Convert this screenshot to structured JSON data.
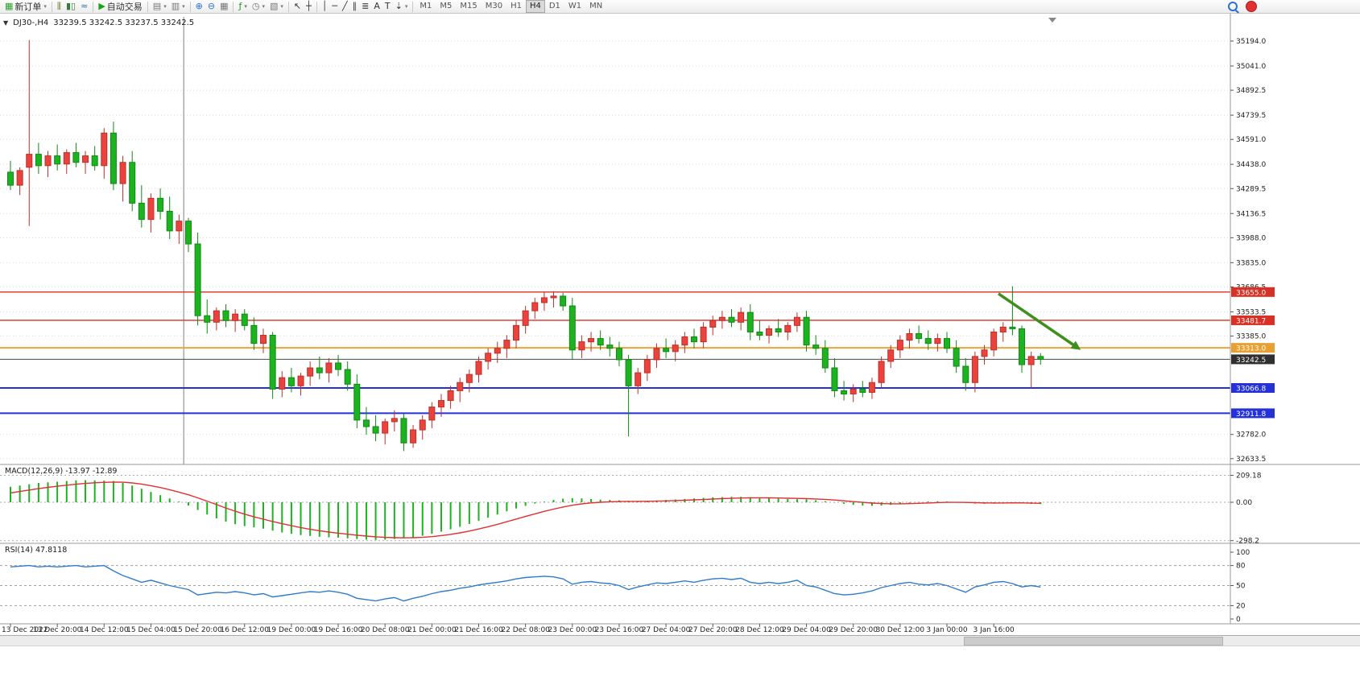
{
  "header": {
    "dropdown_caret": "▼",
    "symbol": "DJ30-,H4",
    "ohlc": "33239.5 33242.5 33237.5 33242.5"
  },
  "toolbar": {
    "items": [
      {
        "type": "button",
        "name": "new-order-button",
        "glyph": "▦",
        "glyph_color": "#2ca02c",
        "label": "新订单",
        "caret": true
      },
      {
        "type": "sep"
      },
      {
        "type": "icon",
        "name": "bar-chart-icon",
        "glyph": "⫼",
        "glyph_color": "#6a7a2a"
      },
      {
        "type": "icon",
        "name": "candlestick-chart-icon",
        "glyph": "▮▯",
        "glyph_color": "#3a7d3a"
      },
      {
        "type": "icon",
        "name": "line-chart-icon",
        "glyph": "≈",
        "glyph_color": "#3a6d9a"
      },
      {
        "type": "sep"
      },
      {
        "type": "button",
        "name": "autotrading-button",
        "glyph": "▶",
        "glyph_color": "#19a319",
        "label": "自动交易"
      },
      {
        "type": "sep"
      },
      {
        "type": "icon",
        "name": "new-chart-icon",
        "glyph": "▤",
        "glyph_color": "#777777",
        "caret": true
      },
      {
        "type": "icon",
        "name": "profiles-icon",
        "glyph": "▥",
        "glyph_color": "#777777",
        "caret": true
      },
      {
        "type": "sep"
      },
      {
        "type": "icon",
        "name": "zoom-in-icon",
        "glyph": "⊕",
        "glyph_color": "#2a6fd4"
      },
      {
        "type": "icon",
        "name": "zoom-out-icon",
        "glyph": "⊖",
        "glyph_color": "#2a6fd4"
      },
      {
        "type": "icon",
        "name": "tile-windows-icon",
        "glyph": "▦",
        "glyph_color": "#777777"
      },
      {
        "type": "sep"
      },
      {
        "type": "icon",
        "name": "indicators-icon",
        "glyph": "ƒ",
        "glyph_color": "#1f9e1f",
        "caret": true
      },
      {
        "type": "icon",
        "name": "periods-icon",
        "glyph": "◷",
        "glyph_color": "#777777",
        "caret": true
      },
      {
        "type": "icon",
        "name": "templates-icon",
        "glyph": "▧",
        "glyph_color": "#777777",
        "caret": true
      },
      {
        "type": "sep"
      },
      {
        "type": "icon",
        "name": "cursor-icon",
        "glyph": "↖",
        "glyph_color": "#333333"
      },
      {
        "type": "icon",
        "name": "crosshair-icon",
        "glyph": "┼",
        "glyph_color": "#333333"
      },
      {
        "type": "sep"
      },
      {
        "type": "icon",
        "name": "vertical-line-icon",
        "glyph": "│",
        "glyph_color": "#333333"
      },
      {
        "type": "icon",
        "name": "horizontal-line-icon",
        "glyph": "─",
        "glyph_color": "#333333"
      },
      {
        "type": "icon",
        "name": "trendline-icon",
        "glyph": "╱",
        "glyph_color": "#333333"
      },
      {
        "type": "icon",
        "name": "channel-icon",
        "glyph": "∥",
        "glyph_color": "#333333"
      },
      {
        "type": "icon",
        "name": "fibonacci-icon",
        "glyph": "≣",
        "glyph_color": "#333333"
      },
      {
        "type": "icon",
        "name": "text-icon",
        "glyph": "A",
        "glyph_color": "#333333"
      },
      {
        "type": "icon",
        "name": "label-icon",
        "glyph": "T",
        "glyph_color": "#333333"
      },
      {
        "type": "icon",
        "name": "arrows-icon",
        "glyph": "⇣",
        "glyph_color": "#333333",
        "caret": true
      },
      {
        "type": "sep"
      },
      {
        "type": "tf-group"
      }
    ],
    "timeframes": {
      "options": [
        "M1",
        "M5",
        "M15",
        "M30",
        "H1",
        "H4",
        "D1",
        "W1",
        "MN"
      ],
      "active": "H4"
    }
  },
  "chart_data": {
    "type": "candlestick",
    "symbol": "DJ30-",
    "period": "H4",
    "current_bar_ohlc": {
      "open": 33239.5,
      "high": 33242.5,
      "low": 33237.5,
      "close": 33242.5
    },
    "colors": {
      "up": "#e8433c",
      "up_stroke": "#bf2f29",
      "down": "#1cb220",
      "down_stroke": "#0f8a13",
      "macd_hist": "#1cb220",
      "macd_signal": "#e03030",
      "rsi_line": "#2f7cc9",
      "grid": "#d8d8d8",
      "axis_text": "#222222",
      "separator": "#9a9a9a",
      "vline": "#808080"
    },
    "price_axis": {
      "min": 32598,
      "max": 35342,
      "labels": [
        35194.0,
        35041.0,
        34892.5,
        34739.5,
        34591.0,
        34438.0,
        34289.5,
        34136.5,
        33988.0,
        33835.0,
        33686.5,
        33533.5,
        33385.0,
        32782.0,
        32633.5
      ]
    },
    "hlines": [
      {
        "price": 33655.0,
        "label": "33655.0",
        "color": "#d93025",
        "width": 1.4,
        "badge": "#d93025"
      },
      {
        "price": 33481.7,
        "label": "33481.7",
        "color": "#d93025",
        "width": 1.4,
        "badge": "#d93025"
      },
      {
        "price": 33313.0,
        "label": "33313.0",
        "color": "#efa23b",
        "width": 2,
        "badge": "#e8a030"
      },
      {
        "price": 33242.5,
        "label": "33242.5",
        "color": "#4a4a4a",
        "width": 1,
        "badge": "#2f2f2f"
      },
      {
        "price": 33066.8,
        "label": "33066.8",
        "color": "#2430d8",
        "width": 2,
        "badge": "#2430d8"
      },
      {
        "price": 32911.8,
        "label": "32911.8",
        "color": "#2430d8",
        "width": 2,
        "badge": "#2430d8"
      }
    ],
    "vline_bar": 18.5,
    "arrow": {
      "from_bar": 105.5,
      "from_price": 33645,
      "to_bar": 114.3,
      "to_price": 33300,
      "color": "#3e8f1e"
    },
    "time_axis": {
      "label_every_bars": 5,
      "labels": [
        "13 Dec 2022",
        "13 Dec 20:00",
        "14 Dec 12:00",
        "15 Dec 04:00",
        "15 Dec 20:00",
        "16 Dec 12:00",
        "19 Dec 00:00",
        "19 Dec 16:00",
        "20 Dec 08:00",
        "21 Dec 00:00",
        "21 Dec 16:00",
        "22 Dec 08:00",
        "23 Dec 00:00",
        "23 Dec 16:00",
        "27 Dec 04:00",
        "27 Dec 20:00",
        "28 Dec 12:00",
        "29 Dec 04:00",
        "29 Dec 20:00",
        "30 Dec 12:00",
        "3 Jan 00:00",
        "3 Jan 16:00"
      ]
    },
    "candles": [
      [
        34390,
        34460,
        34280,
        34310
      ],
      [
        34310,
        34420,
        34250,
        34400
      ],
      [
        34420,
        35200,
        34060,
        34500
      ],
      [
        34500,
        34570,
        34380,
        34430
      ],
      [
        34430,
        34520,
        34360,
        34490
      ],
      [
        34490,
        34560,
        34400,
        34440
      ],
      [
        34440,
        34530,
        34380,
        34510
      ],
      [
        34510,
        34570,
        34420,
        34450
      ],
      [
        34450,
        34520,
        34380,
        34490
      ],
      [
        34490,
        34550,
        34400,
        34430
      ],
      [
        34430,
        34660,
        34350,
        34630
      ],
      [
        34630,
        34700,
        34280,
        34320
      ],
      [
        34320,
        34490,
        34210,
        34450
      ],
      [
        34450,
        34520,
        34150,
        34200
      ],
      [
        34200,
        34310,
        34050,
        34100
      ],
      [
        34100,
        34260,
        34020,
        34230
      ],
      [
        34230,
        34290,
        34100,
        34150
      ],
      [
        34150,
        34240,
        33980,
        34030
      ],
      [
        34030,
        34130,
        33950,
        34090
      ],
      [
        34090,
        34110,
        33900,
        33950
      ],
      [
        33950,
        34020,
        33450,
        33510
      ],
      [
        33510,
        33610,
        33400,
        33470
      ],
      [
        33470,
        33560,
        33420,
        33540
      ],
      [
        33540,
        33580,
        33440,
        33480
      ],
      [
        33480,
        33550,
        33410,
        33520
      ],
      [
        33520,
        33550,
        33420,
        33450
      ],
      [
        33450,
        33500,
        33300,
        33340
      ],
      [
        33340,
        33430,
        33280,
        33390
      ],
      [
        33390,
        33410,
        33000,
        33060
      ],
      [
        33060,
        33170,
        33010,
        33130
      ],
      [
        33130,
        33190,
        33040,
        33080
      ],
      [
        33080,
        33160,
        33020,
        33140
      ],
      [
        33140,
        33230,
        33080,
        33190
      ],
      [
        33190,
        33260,
        33120,
        33160
      ],
      [
        33160,
        33250,
        33100,
        33220
      ],
      [
        33220,
        33270,
        33140,
        33180
      ],
      [
        33180,
        33230,
        33050,
        33090
      ],
      [
        33090,
        33150,
        32820,
        32870
      ],
      [
        32870,
        32950,
        32780,
        32830
      ],
      [
        32830,
        32900,
        32740,
        32790
      ],
      [
        32790,
        32880,
        32720,
        32860
      ],
      [
        32860,
        32930,
        32800,
        32880
      ],
      [
        32880,
        32910,
        32680,
        32730
      ],
      [
        32730,
        32840,
        32700,
        32810
      ],
      [
        32810,
        32900,
        32750,
        32870
      ],
      [
        32870,
        32980,
        32820,
        32950
      ],
      [
        32950,
        33030,
        32890,
        32990
      ],
      [
        32990,
        33080,
        32940,
        33050
      ],
      [
        33050,
        33130,
        32980,
        33100
      ],
      [
        33100,
        33180,
        33040,
        33150
      ],
      [
        33150,
        33260,
        33100,
        33230
      ],
      [
        33230,
        33310,
        33180,
        33280
      ],
      [
        33280,
        33350,
        33220,
        33310
      ],
      [
        33310,
        33390,
        33250,
        33360
      ],
      [
        33360,
        33480,
        33310,
        33450
      ],
      [
        33450,
        33570,
        33400,
        33540
      ],
      [
        33540,
        33620,
        33490,
        33590
      ],
      [
        33590,
        33655,
        33540,
        33620
      ],
      [
        33620,
        33660,
        33560,
        33630
      ],
      [
        33630,
        33650,
        33540,
        33570
      ],
      [
        33570,
        33620,
        33240,
        33300
      ],
      [
        33300,
        33390,
        33250,
        33350
      ],
      [
        33350,
        33410,
        33290,
        33370
      ],
      [
        33370,
        33420,
        33300,
        33330
      ],
      [
        33330,
        33380,
        33260,
        33310
      ],
      [
        33310,
        33350,
        33200,
        33240
      ],
      [
        33240,
        33270,
        32770,
        33080
      ],
      [
        33080,
        33190,
        33030,
        33160
      ],
      [
        33160,
        33270,
        33110,
        33240
      ],
      [
        33240,
        33340,
        33190,
        33310
      ],
      [
        33310,
        33370,
        33250,
        33290
      ],
      [
        33290,
        33360,
        33230,
        33330
      ],
      [
        33330,
        33410,
        33280,
        33380
      ],
      [
        33380,
        33430,
        33310,
        33350
      ],
      [
        33350,
        33470,
        33310,
        33440
      ],
      [
        33440,
        33510,
        33390,
        33480
      ],
      [
        33480,
        33540,
        33430,
        33500
      ],
      [
        33500,
        33550,
        33440,
        33470
      ],
      [
        33470,
        33560,
        33420,
        33530
      ],
      [
        33530,
        33580,
        33360,
        33410
      ],
      [
        33410,
        33480,
        33360,
        33390
      ],
      [
        33390,
        33450,
        33340,
        33430
      ],
      [
        33430,
        33490,
        33380,
        33410
      ],
      [
        33410,
        33470,
        33360,
        33450
      ],
      [
        33450,
        33530,
        33410,
        33500
      ],
      [
        33500,
        33540,
        33290,
        33330
      ],
      [
        33330,
        33390,
        33270,
        33310
      ],
      [
        33310,
        33360,
        33160,
        33190
      ],
      [
        33190,
        33250,
        33010,
        33050
      ],
      [
        33050,
        33110,
        32990,
        33030
      ],
      [
        33030,
        33090,
        32980,
        33060
      ],
      [
        33060,
        33110,
        33010,
        33040
      ],
      [
        33040,
        33130,
        33000,
        33100
      ],
      [
        33100,
        33260,
        33070,
        33230
      ],
      [
        33230,
        33330,
        33190,
        33300
      ],
      [
        33300,
        33390,
        33250,
        33360
      ],
      [
        33360,
        33430,
        33310,
        33400
      ],
      [
        33400,
        33450,
        33340,
        33370
      ],
      [
        33370,
        33420,
        33300,
        33340
      ],
      [
        33340,
        33400,
        33290,
        33370
      ],
      [
        33370,
        33410,
        33280,
        33310
      ],
      [
        33310,
        33360,
        33160,
        33200
      ],
      [
        33200,
        33250,
        33050,
        33100
      ],
      [
        33100,
        33290,
        33040,
        33260
      ],
      [
        33260,
        33330,
        33210,
        33300
      ],
      [
        33300,
        33430,
        33260,
        33410
      ],
      [
        33410,
        33470,
        33350,
        33440
      ],
      [
        33440,
        33690,
        33390,
        33430
      ],
      [
        33430,
        33450,
        33160,
        33210
      ],
      [
        33210,
        33290,
        33070,
        33260
      ],
      [
        33260,
        33280,
        33210,
        33242.5
      ]
    ],
    "indicators": [
      {
        "name": "macd",
        "label": "MACD(12,26,9)",
        "values_text": "-13.97 -12.89",
        "axis_labels": [
          "209.18",
          "0.00",
          "-298.2"
        ],
        "axis_values": [
          209.18,
          0,
          -298.2
        ],
        "signal_seed": 60,
        "histogram": [
          120,
          130,
          140,
          150,
          155,
          160,
          165,
          170,
          172,
          170,
          168,
          165,
          150,
          130,
          105,
          80,
          55,
          30,
          5,
          -25,
          -60,
          -95,
          -125,
          -150,
          -170,
          -185,
          -195,
          -205,
          -220,
          -235,
          -245,
          -255,
          -262,
          -268,
          -272,
          -275,
          -280,
          -285,
          -290,
          -292,
          -290,
          -285,
          -280,
          -272,
          -260,
          -245,
          -228,
          -210,
          -190,
          -168,
          -145,
          -120,
          -95,
          -70,
          -48,
          -28,
          -10,
          5,
          18,
          28,
          32,
          30,
          25,
          20,
          18,
          15,
          10,
          8,
          10,
          14,
          18,
          22,
          26,
          30,
          34,
          38,
          40,
          42,
          42,
          40,
          36,
          32,
          28,
          25,
          24,
          22,
          16,
          8,
          -2,
          -12,
          -20,
          -25,
          -28,
          -26,
          -20,
          -12,
          -5,
          2,
          6,
          8,
          6,
          2,
          -5,
          -10,
          -12,
          -10,
          -5,
          0,
          -8,
          -12,
          -13.97
        ]
      },
      {
        "name": "rsi",
        "label": "RSI(14)",
        "values_text": "47.8118",
        "axis_labels": [
          "100",
          "80",
          "50",
          "20",
          "0"
        ],
        "axis_values": [
          100,
          80,
          50,
          20,
          0
        ],
        "levels": [
          80,
          50,
          20
        ],
        "values": [
          78,
          79,
          80,
          78,
          79,
          78,
          79,
          80,
          78,
          79,
          80,
          72,
          65,
          60,
          55,
          58,
          54,
          50,
          47,
          44,
          36,
          38,
          40,
          39,
          41,
          39,
          36,
          38,
          33,
          35,
          37,
          39,
          41,
          40,
          42,
          40,
          37,
          31,
          29,
          27,
          30,
          32,
          27,
          31,
          34,
          38,
          41,
          43,
          46,
          48,
          51,
          53,
          55,
          57,
          60,
          62,
          63,
          64,
          63,
          60,
          52,
          55,
          56,
          54,
          53,
          50,
          44,
          48,
          51,
          54,
          53,
          55,
          57,
          55,
          58,
          60,
          61,
          59,
          61,
          55,
          53,
          55,
          53,
          55,
          58,
          50,
          48,
          43,
          38,
          36,
          37,
          39,
          42,
          47,
          50,
          53,
          55,
          52,
          51,
          53,
          50,
          45,
          40,
          48,
          51,
          55,
          56,
          53,
          48,
          50,
          47.8
        ]
      }
    ]
  }
}
